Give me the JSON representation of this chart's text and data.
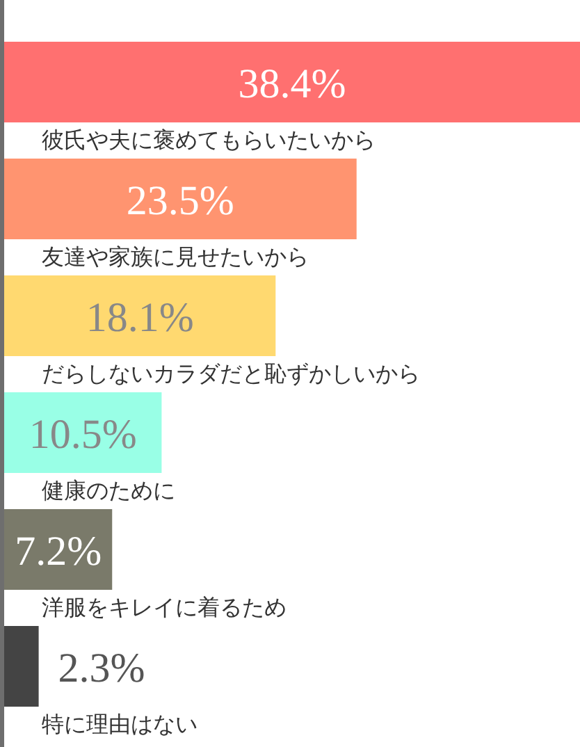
{
  "chart_data": {
    "type": "bar",
    "orientation": "horizontal",
    "categories": [
      "彼氏や夫に褒めてもらいたいから",
      "友達や家族に見せたいから",
      "だらしないカラダだと恥ずかしいから",
      "健康のために",
      "洋服をキレイに着るため",
      "特に理由はない"
    ],
    "values": [
      38.4,
      23.5,
      18.1,
      10.5,
      7.2,
      2.3
    ],
    "colors": [
      "#ff7070",
      "#ff9470",
      "#ffd970",
      "#99ffe6",
      "#7a7a6a",
      "#444444"
    ],
    "value_labels": [
      "38.4%",
      "23.5%",
      "18.1%",
      "10.5%",
      "7.2%",
      "2.3%"
    ]
  }
}
